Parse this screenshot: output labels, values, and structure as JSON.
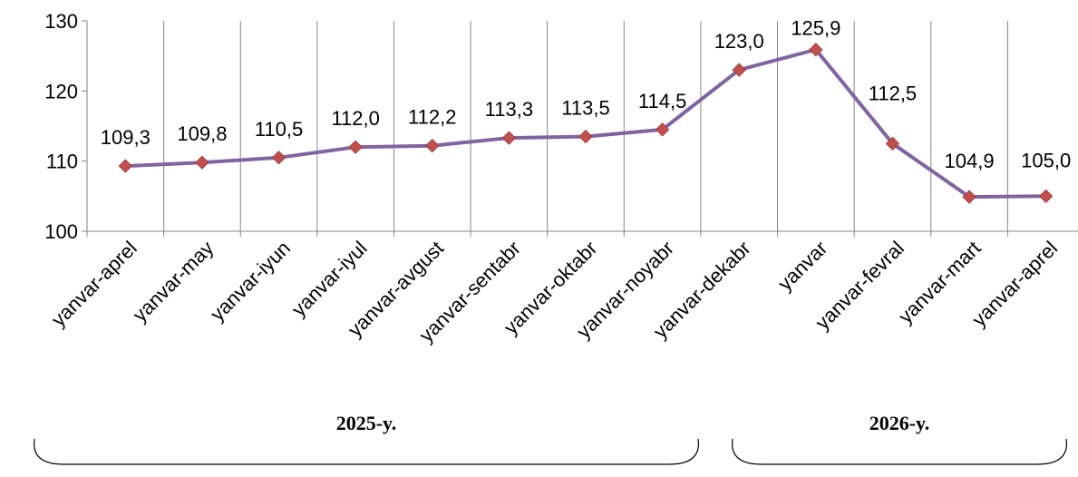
{
  "chart_data": {
    "type": "line",
    "title": "",
    "xlabel": "",
    "ylabel": "",
    "categories": [
      "yanvar-aprel",
      "yanvar-may",
      "yanvar-iyun",
      "yanvar-iyul",
      "yanvar-avgust",
      "yanvar-sentabr",
      "yanvar-oktabr",
      "yanvar-noyabr",
      "yanvar-dekabr",
      "yanvar",
      "yanvar-fevral",
      "yanvar-mart",
      "yanvar-aprel"
    ],
    "series": [
      {
        "values": [
          109.3,
          109.8,
          110.5,
          112.0,
          112.2,
          113.3,
          113.5,
          114.5,
          123.0,
          125.9,
          112.5,
          104.9,
          105.0
        ],
        "labels": [
          "109,3",
          "109,8",
          "110,5",
          "112,0",
          "112,2",
          "113,3",
          "113,5",
          "114,5",
          "123,0",
          "125,9",
          "112,5",
          "104,9",
          "105,0"
        ]
      }
    ],
    "ylim": [
      100,
      130
    ],
    "yticks": [
      "100",
      "110",
      "120",
      "130"
    ],
    "grid": "vertical",
    "legend": "none",
    "groups": [
      {
        "label": "2025-y.",
        "from": 0,
        "to": 8
      },
      {
        "label": "2026-y.",
        "from": 9,
        "to": 12
      }
    ],
    "colors": {
      "line": "#8064A2",
      "marker": "#C0504D",
      "grid": "#868686",
      "axis": "#868686"
    }
  }
}
